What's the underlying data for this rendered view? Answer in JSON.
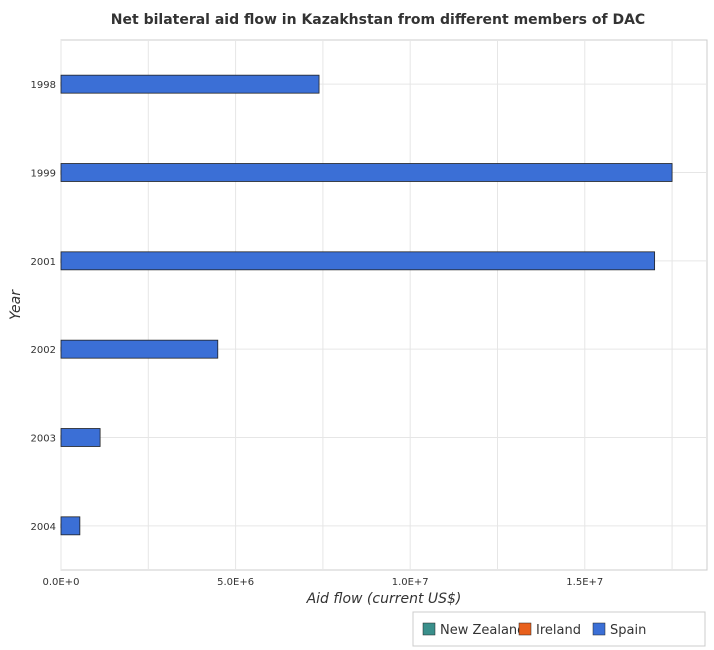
{
  "chart_data": {
    "type": "bar",
    "orientation": "horizontal",
    "title": "Net bilateral aid flow in Kazakhstan from different members of DAC",
    "xlabel": "Aid flow (current US$)",
    "ylabel": "Year",
    "categories": [
      "1998",
      "1999",
      "2001",
      "2002",
      "2003",
      "2004"
    ],
    "series": [
      {
        "name": "New Zealand",
        "color": "#3a8f8b",
        "values": [
          20000,
          10000,
          10000,
          10000,
          10000,
          10000
        ]
      },
      {
        "name": "Ireland",
        "color": "#e8601c",
        "values": [
          0,
          10000,
          50000,
          10000,
          20000,
          60000
        ]
      },
      {
        "name": "Spain",
        "color": "#3b6fd6",
        "values": [
          7390000,
          17500000,
          17000000,
          4490000,
          1120000,
          540000
        ]
      }
    ],
    "xlim": [
      0,
      18500000
    ],
    "xticks": [
      0,
      5000000,
      10000000,
      15000000
    ],
    "xtick_labels": [
      "0.0E+0",
      "5.0E+6",
      "1.0E+7",
      "1.5E+7"
    ],
    "grid": true,
    "legend_position": "bottom-right"
  }
}
